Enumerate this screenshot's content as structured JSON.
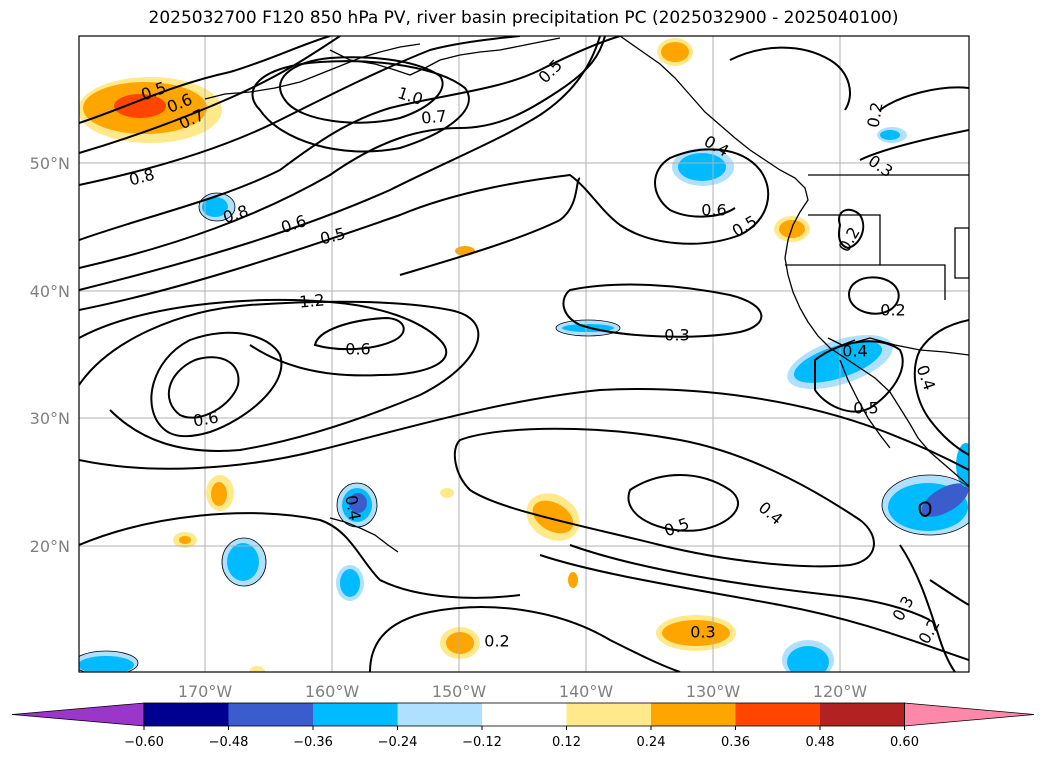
{
  "title": "2025032700 F120 850 hPa PV, river basin precipitation PC (2025032900 - 2025040100)",
  "latitude_labels": [
    "50°N",
    "40°N",
    "30°N",
    "20°N"
  ],
  "longitude_labels": [
    "170°W",
    "160°W",
    "150°W",
    "140°W",
    "130°W",
    "120°W"
  ],
  "contour_labels": [
    "0.5",
    "0.6",
    "0.7",
    "0.8",
    "0.8",
    "0.6",
    "0.5",
    "1.2",
    "1.0",
    "0.7",
    "0.5",
    "0.6",
    "0.6",
    "0.4",
    "0.6",
    "0.5",
    "0.4",
    "0.3",
    "0.2",
    "0.2",
    "0.4",
    "0.5",
    "0.2",
    "0.3",
    "0.5",
    "0.4",
    "0.2",
    "0.3",
    "0.3",
    "0.2",
    "0.4"
  ],
  "colorbar": {
    "colors": [
      "#9a36c9",
      "#000090",
      "#3a5ccc",
      "#00bbff",
      "#b0e0ff",
      "#ffffff",
      "#ffe98a",
      "#ffa500",
      "#ff4500",
      "#b22222",
      "#ff88aa"
    ],
    "tick_labels": [
      "−0.60",
      "−0.48",
      "−0.36",
      "−0.24",
      "−0.12",
      "0.12",
      "0.24",
      "0.36",
      "0.48",
      "0.60"
    ]
  },
  "colors": {
    "land_line": "#000000",
    "grid": "#b0b0b0",
    "contour": "#000000",
    "tick_text": "#808080"
  }
}
